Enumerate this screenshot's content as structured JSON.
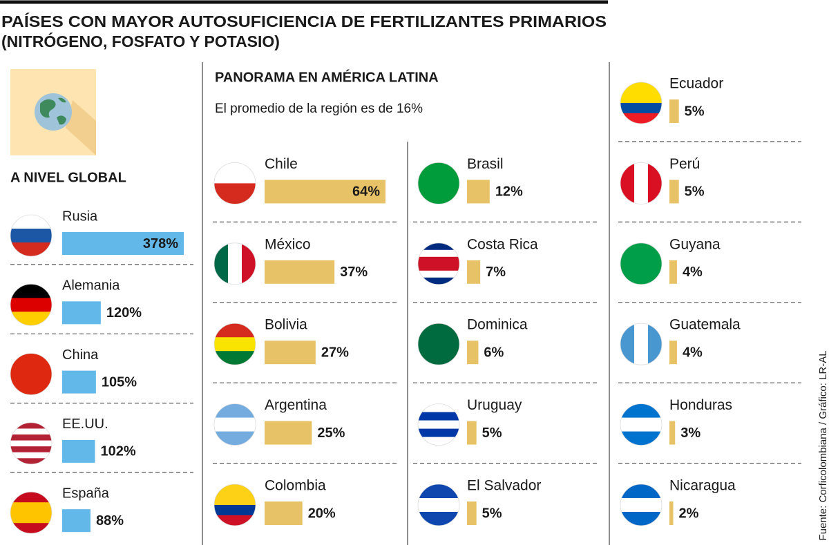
{
  "title": [
    "PAÍSES CON MAYOR AUTOSUFICIENCIA DE FERTILIZANTES PRIMARIOS",
    "(NITRÓGENO, FOSFATO Y POTASIO)"
  ],
  "source": "Fuente: Corficolombiana / Gráfico: LR-AL",
  "chart_data": [
    {
      "type": "bar",
      "title": "A NIVEL GLOBAL",
      "color": "#62b8e8",
      "categories": [
        "Rusia",
        "Alemania",
        "China",
        "EE.UU.",
        "España"
      ],
      "values": [
        378,
        120,
        105,
        102,
        88
      ],
      "value_labels": [
        "378%",
        "120%",
        "105%",
        "102%",
        "88%"
      ]
    },
    {
      "type": "bar",
      "title": "PANORAMA EN AMÉRICA LATINA",
      "subtitle": "El promedio de la región es de 16%",
      "color": "#e8c266",
      "categories": [
        "Chile",
        "México",
        "Bolivia",
        "Argentina",
        "Colombia",
        "Brasil",
        "Costa Rica",
        "Dominica",
        "Uruguay",
        "El Salvador",
        "Ecuador",
        "Perú",
        "Guyana",
        "Guatemala",
        "Honduras",
        "Nicaragua"
      ],
      "values": [
        64,
        37,
        27,
        25,
        20,
        12,
        7,
        6,
        5,
        5,
        5,
        5,
        4,
        4,
        3,
        2
      ],
      "value_labels": [
        "64%",
        "37%",
        "27%",
        "25%",
        "20%",
        "12%",
        "7%",
        "6%",
        "5%",
        "5%",
        "5%",
        "5%",
        "4%",
        "4%",
        "3%",
        "2%"
      ]
    }
  ]
}
